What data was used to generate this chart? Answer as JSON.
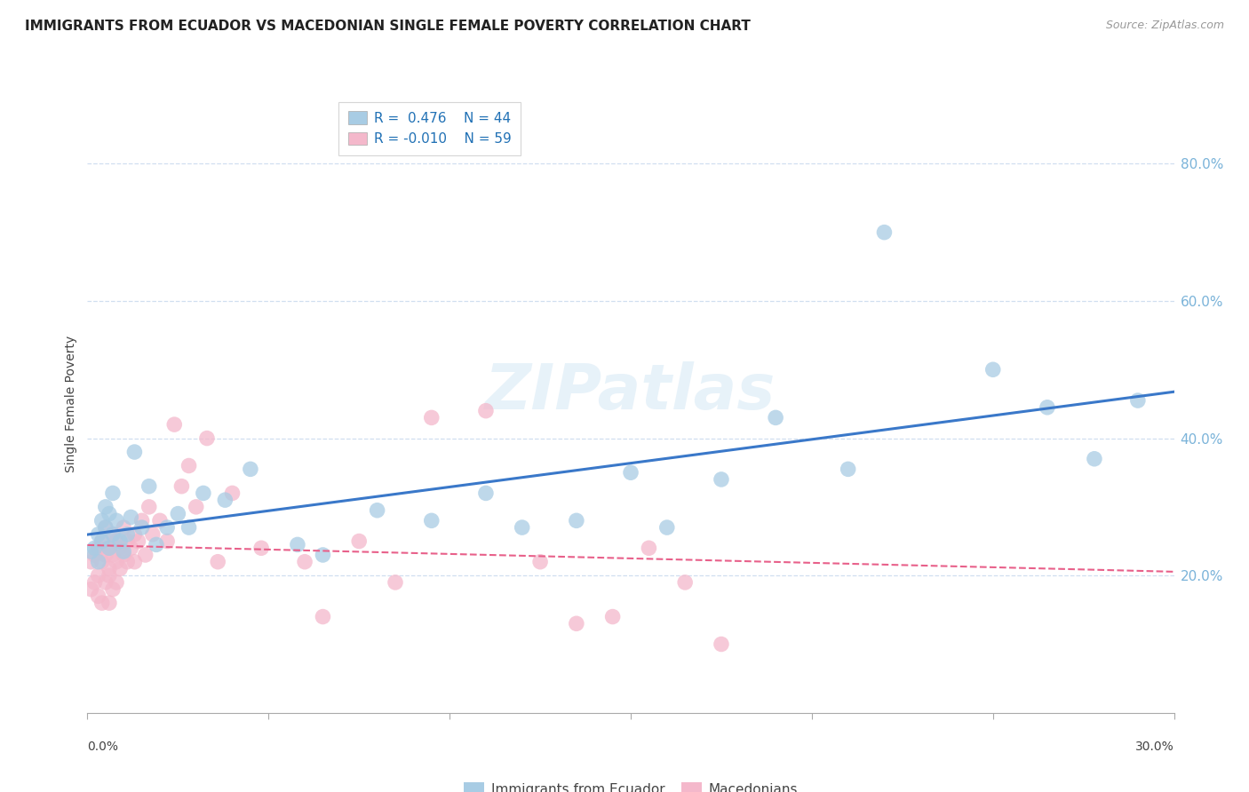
{
  "title": "IMMIGRANTS FROM ECUADOR VS MACEDONIAN SINGLE FEMALE POVERTY CORRELATION CHART",
  "source": "Source: ZipAtlas.com",
  "ylabel": "Single Female Poverty",
  "ylabel_right_ticks": [
    "80.0%",
    "60.0%",
    "40.0%",
    "20.0%"
  ],
  "ylabel_right_vals": [
    0.8,
    0.6,
    0.4,
    0.2
  ],
  "xlim": [
    0.0,
    0.3
  ],
  "ylim": [
    0.0,
    0.9
  ],
  "watermark": "ZIPatlas",
  "blue_color": "#a8cce4",
  "pink_color": "#f4b8cb",
  "blue_line_color": "#3a78c9",
  "pink_line_color": "#e8608a",
  "grid_color": "#d0dff0",
  "ecuador_x": [
    0.001,
    0.002,
    0.003,
    0.003,
    0.004,
    0.004,
    0.005,
    0.005,
    0.006,
    0.006,
    0.007,
    0.007,
    0.008,
    0.009,
    0.01,
    0.011,
    0.012,
    0.013,
    0.015,
    0.017,
    0.019,
    0.022,
    0.025,
    0.028,
    0.032,
    0.038,
    0.045,
    0.058,
    0.065,
    0.08,
    0.095,
    0.11,
    0.12,
    0.135,
    0.15,
    0.16,
    0.175,
    0.19,
    0.21,
    0.22,
    0.25,
    0.265,
    0.278,
    0.29
  ],
  "ecuador_y": [
    0.235,
    0.24,
    0.22,
    0.26,
    0.28,
    0.25,
    0.27,
    0.3,
    0.29,
    0.24,
    0.26,
    0.32,
    0.28,
    0.25,
    0.235,
    0.26,
    0.285,
    0.38,
    0.27,
    0.33,
    0.245,
    0.27,
    0.29,
    0.27,
    0.32,
    0.31,
    0.355,
    0.245,
    0.23,
    0.295,
    0.28,
    0.32,
    0.27,
    0.28,
    0.35,
    0.27,
    0.34,
    0.43,
    0.355,
    0.7,
    0.5,
    0.445,
    0.37,
    0.455
  ],
  "macedonian_x": [
    0.001,
    0.001,
    0.002,
    0.002,
    0.003,
    0.003,
    0.003,
    0.004,
    0.004,
    0.004,
    0.005,
    0.005,
    0.005,
    0.006,
    0.006,
    0.006,
    0.006,
    0.007,
    0.007,
    0.007,
    0.008,
    0.008,
    0.008,
    0.009,
    0.009,
    0.01,
    0.01,
    0.011,
    0.011,
    0.012,
    0.013,
    0.013,
    0.014,
    0.015,
    0.016,
    0.017,
    0.018,
    0.02,
    0.022,
    0.024,
    0.026,
    0.028,
    0.03,
    0.033,
    0.036,
    0.04,
    0.048,
    0.06,
    0.065,
    0.075,
    0.085,
    0.095,
    0.11,
    0.125,
    0.135,
    0.145,
    0.155,
    0.165,
    0.175
  ],
  "macedonian_y": [
    0.22,
    0.18,
    0.23,
    0.19,
    0.2,
    0.24,
    0.17,
    0.22,
    0.25,
    0.16,
    0.23,
    0.19,
    0.27,
    0.21,
    0.24,
    0.2,
    0.16,
    0.23,
    0.26,
    0.18,
    0.22,
    0.25,
    0.19,
    0.24,
    0.21,
    0.23,
    0.27,
    0.22,
    0.25,
    0.24,
    0.26,
    0.22,
    0.25,
    0.28,
    0.23,
    0.3,
    0.26,
    0.28,
    0.25,
    0.42,
    0.33,
    0.36,
    0.3,
    0.4,
    0.22,
    0.32,
    0.24,
    0.22,
    0.14,
    0.25,
    0.19,
    0.43,
    0.44,
    0.22,
    0.13,
    0.14,
    0.24,
    0.19,
    0.1
  ]
}
